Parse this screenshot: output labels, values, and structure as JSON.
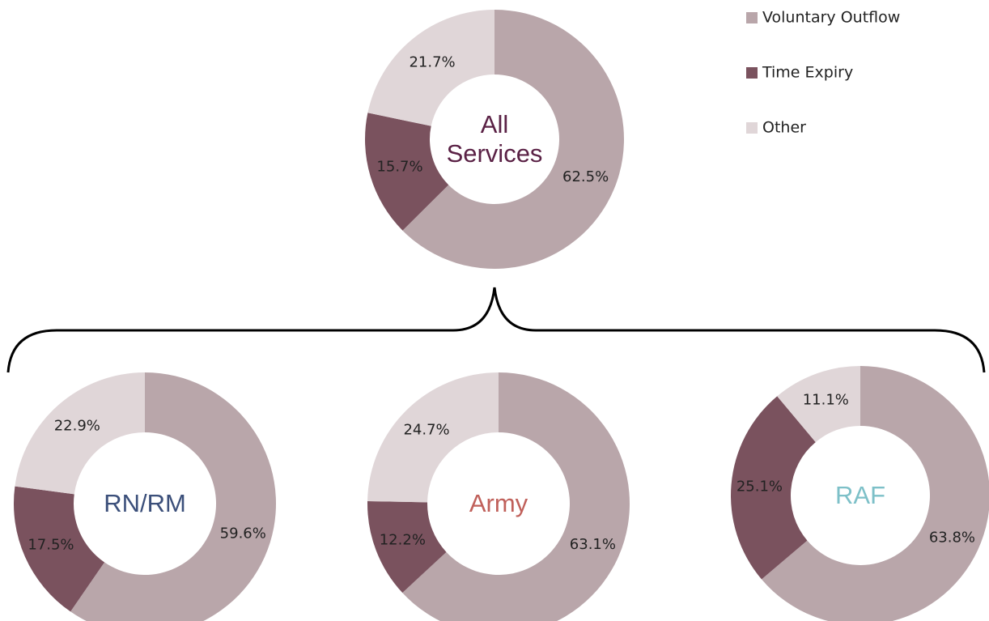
{
  "legend": {
    "categories": [
      "Voluntary Outflow",
      "Time Expiry",
      "Other"
    ],
    "colors": [
      "#b9a6aa",
      "#7a525e",
      "#e0d6d8"
    ]
  },
  "chart_data": [
    {
      "type": "donut",
      "title": "All Services",
      "title_color": "#5a2145",
      "values": [
        62.5,
        15.7,
        21.7
      ],
      "value_labels": [
        "62.5%",
        "15.7%",
        "21.7%"
      ]
    },
    {
      "type": "donut",
      "title": "RN/RM",
      "title_color": "#3b4f7a",
      "values": [
        59.6,
        17.5,
        22.9
      ],
      "value_labels": [
        "59.6%",
        "17.5%",
        "22.9%"
      ]
    },
    {
      "type": "donut",
      "title": "Army",
      "title_color": "#c0605a",
      "values": [
        63.1,
        12.2,
        24.7
      ],
      "value_labels": [
        "63.1%",
        "12.2%",
        "24.7%"
      ]
    },
    {
      "type": "donut",
      "title": "RAF",
      "title_color": "#7dc0c8",
      "values": [
        63.8,
        25.1,
        11.1
      ],
      "value_labels": [
        "63.8%",
        "25.1%",
        "11.1%"
      ]
    }
  ]
}
